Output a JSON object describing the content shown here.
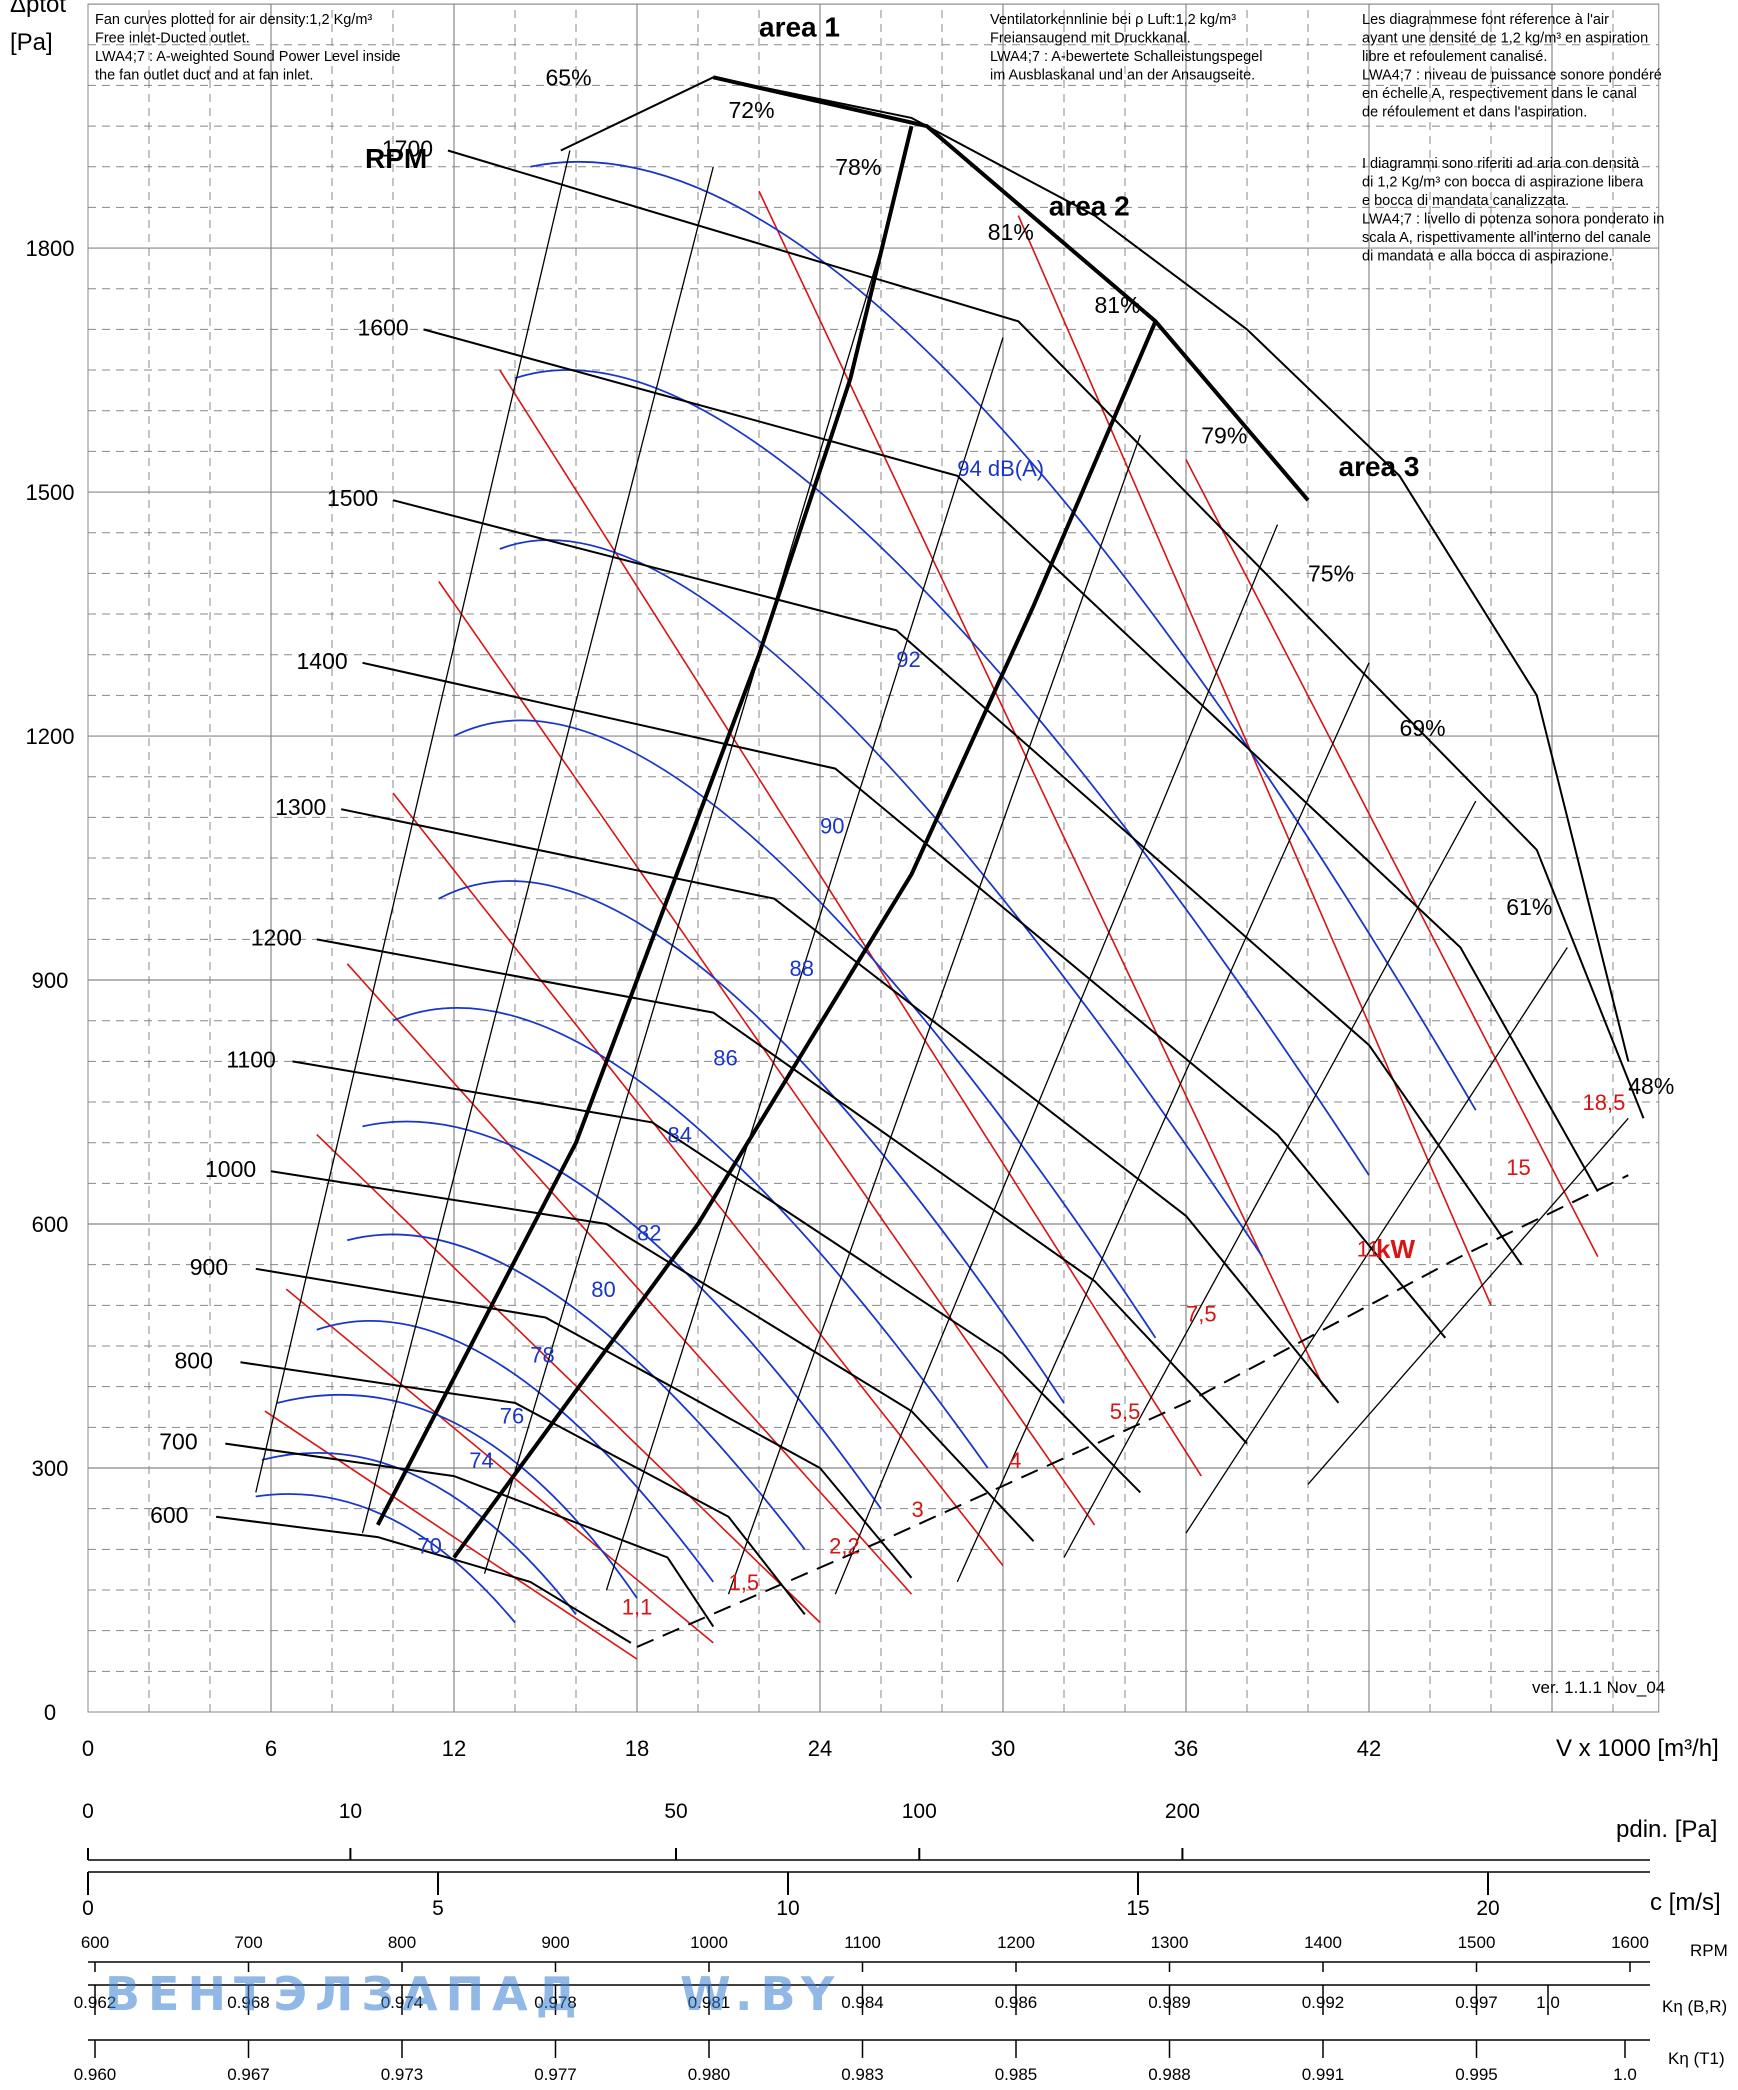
{
  "chart_data": {
    "type": "line",
    "title": "",
    "ylabel": "Δptot",
    "ylabel_unit": "[Pa]",
    "xlabel": "V x 1000 [m³/h]",
    "xlim": [
      0,
      50
    ],
    "ylim": [
      0,
      2100
    ],
    "x_ticks": [
      "0",
      "6",
      "12",
      "18",
      "24",
      "30",
      "36",
      "42"
    ],
    "y_ticks": [
      "0",
      "300",
      "600",
      "900",
      "1200",
      "1500",
      "1800"
    ],
    "grid": true,
    "notes": {
      "en": [
        "Fan curves plotted for air density:1,2 Kg/m³",
        "Free inlet-Ducted outlet.",
        "LWA4;7 : A-weighted Sound Power Level inside",
        "the fan outlet duct and at fan inlet."
      ],
      "de": [
        "Ventilatorkennlinie bei ρ Luft:1,2 kg/m³",
        "Freiansaugend mit Druckkanal.",
        "LWA4;7 : A-bewertete Schalleistungspegel",
        "im Ausblaskanal und an der Ansaugseite."
      ],
      "fr": [
        "Les diagrammese font réference à l'air",
        "ayant une densité de 1,2 kg/m³ en aspiration",
        "libre et refoulement canalisé.",
        "LWA4;7 : niveau de puissance sonore pondéré",
        "en échelle A, respectivement dans le canal",
        "de réfoulement et dans l'aspiration."
      ],
      "it": [
        "I diagrammi sono riferiti ad aria con densità",
        "di 1,2 Kg/m³ con bocca di aspirazione libera",
        "e bocca di mandata canalizzata.",
        "LWA4;7 : livello di potenza sonora ponderato in",
        "scala A, rispettivamente all'interno del canale",
        "di mandata e alla bocca di aspirazione."
      ]
    },
    "rpm_label": "RPM",
    "rpm_curves": [
      {
        "rpm": "600",
        "points": [
          [
            4.2,
            240
          ],
          [
            9.5,
            215
          ],
          [
            14.5,
            160
          ],
          [
            17.8,
            85
          ]
        ]
      },
      {
        "rpm": "700",
        "points": [
          [
            4.5,
            330
          ],
          [
            12,
            290
          ],
          [
            19,
            190
          ],
          [
            20.5,
            105
          ]
        ]
      },
      {
        "rpm": "800",
        "points": [
          [
            5,
            430
          ],
          [
            14,
            380
          ],
          [
            21,
            240
          ],
          [
            23.5,
            120
          ]
        ]
      },
      {
        "rpm": "900",
        "points": [
          [
            5.5,
            545
          ],
          [
            15,
            485
          ],
          [
            24,
            300
          ],
          [
            27,
            165
          ]
        ]
      },
      {
        "rpm": "1000",
        "points": [
          [
            6,
            665
          ],
          [
            17,
            600
          ],
          [
            27,
            370
          ],
          [
            31,
            210
          ]
        ]
      },
      {
        "rpm": "1100",
        "points": [
          [
            6.7,
            800
          ],
          [
            18.5,
            725
          ],
          [
            30,
            440
          ],
          [
            34.5,
            270
          ]
        ]
      },
      {
        "rpm": "1200",
        "points": [
          [
            7.5,
            950
          ],
          [
            20.5,
            860
          ],
          [
            33,
            530
          ],
          [
            38,
            330
          ]
        ]
      },
      {
        "rpm": "1300",
        "points": [
          [
            8.3,
            1110
          ],
          [
            22.5,
            1000
          ],
          [
            36,
            610
          ],
          [
            41,
            380
          ]
        ]
      },
      {
        "rpm": "1400",
        "points": [
          [
            9,
            1290
          ],
          [
            24.5,
            1160
          ],
          [
            39,
            710
          ],
          [
            44.5,
            460
          ]
        ]
      },
      {
        "rpm": "1500",
        "points": [
          [
            10,
            1490
          ],
          [
            26.5,
            1330
          ],
          [
            42,
            820
          ],
          [
            47,
            550
          ]
        ]
      },
      {
        "rpm": "1600",
        "points": [
          [
            11,
            1700
          ],
          [
            28.5,
            1520
          ],
          [
            45,
            940
          ],
          [
            49.5,
            640
          ]
        ]
      },
      {
        "rpm": "1700",
        "points": [
          [
            11.8,
            1920
          ],
          [
            30.5,
            1710
          ],
          [
            47.5,
            1060
          ],
          [
            51,
            730
          ]
        ]
      }
    ],
    "efficiency_labels": [
      "65%",
      "72%",
      "78%",
      "81%",
      "81%",
      "79%",
      "75%",
      "69%",
      "61%",
      "48%"
    ],
    "area_labels": [
      "area 1",
      "area 2",
      "area 3"
    ],
    "sound_label_unit": "dB(A)",
    "sound_levels": [
      "70",
      "74",
      "76",
      "78",
      "80",
      "82",
      "84",
      "86",
      "88",
      "90",
      "92",
      "94 dB(A)"
    ],
    "power_unit": "kW",
    "power_levels": [
      "1,1",
      "1,5",
      "2,2",
      "3",
      "4",
      "5,5",
      "7,5",
      "11",
      "15",
      "18,5"
    ],
    "version": "ver. 1.1.1 Nov_04",
    "colors": {
      "rpm": "#000000",
      "sound": "#1a36c8",
      "power": "#d81414",
      "grid": "#808080"
    }
  },
  "scales": {
    "pdin": {
      "label": "pdin. [Pa]",
      "ticks": [
        "0",
        "10",
        "50",
        "100",
        "200"
      ]
    },
    "velocity": {
      "label": "c [m/s]",
      "ticks": [
        "0",
        "5",
        "10",
        "15",
        "20"
      ]
    },
    "rpm": {
      "label": "RPM",
      "ticks": [
        "600",
        "700",
        "800",
        "900",
        "1000",
        "1100",
        "1200",
        "1300",
        "1400",
        "1500",
        "1600"
      ]
    },
    "k_br": {
      "label": "Kη (B,R)",
      "ticks": [
        "0.962",
        "0.968",
        "0.974",
        "0.978",
        "0.981",
        "0.984",
        "0.986",
        "0.989",
        "0.992",
        "0.997",
        "1.0"
      ]
    },
    "k_t1": {
      "label": "Kη (T1)",
      "ticks": [
        "0.960",
        "0.967",
        "0.973",
        "0.977",
        "0.980",
        "0.983",
        "0.985",
        "0.988",
        "0.991",
        "0.995",
        "1.0"
      ]
    }
  },
  "watermark": {
    "text1": "ВЕНТЭЛЗАПАД",
    "text2": "W.BY"
  }
}
